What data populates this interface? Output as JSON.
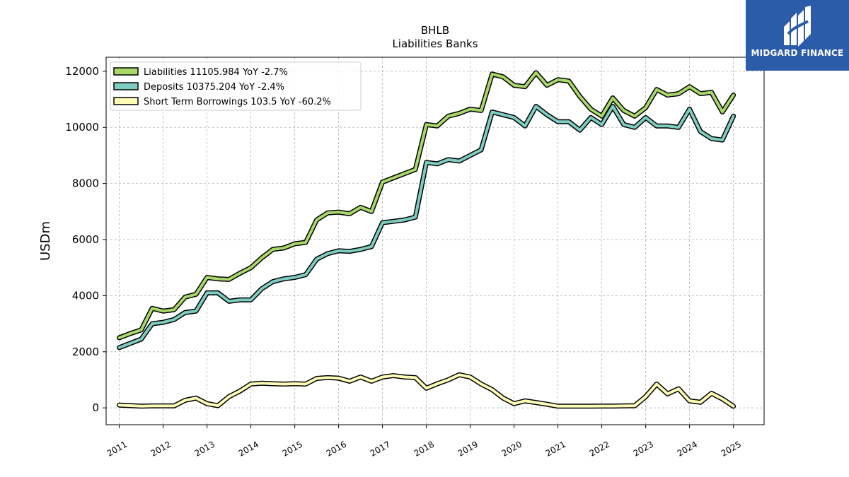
{
  "brand": {
    "name": "MIDGARD FINANCE",
    "bg": "#2a5caa"
  },
  "chart_data": {
    "type": "line",
    "title": "BHLB",
    "subtitle": "Liabilities Banks",
    "xlabel": "",
    "ylabel": "USDm",
    "xlim": [
      2010.7,
      2025.7
    ],
    "ylim": [
      -600,
      12500
    ],
    "yticks": [
      0,
      2000,
      4000,
      6000,
      8000,
      10000,
      12000
    ],
    "xticks": [
      "2011",
      "2012",
      "2013",
      "2014",
      "2015",
      "2016",
      "2017",
      "2018",
      "2019",
      "2020",
      "2021",
      "2022",
      "2023",
      "2024",
      "2025"
    ],
    "grid": true,
    "legend_position": "top-left",
    "x": [
      2011.0,
      2011.25,
      2011.5,
      2011.75,
      2012.0,
      2012.25,
      2012.5,
      2012.75,
      2013.0,
      2013.25,
      2013.5,
      2013.75,
      2014.0,
      2014.25,
      2014.5,
      2014.75,
      2015.0,
      2015.25,
      2015.5,
      2015.75,
      2016.0,
      2016.25,
      2016.5,
      2016.75,
      2017.0,
      2017.25,
      2017.5,
      2017.75,
      2018.0,
      2018.25,
      2018.5,
      2018.75,
      2019.0,
      2019.25,
      2019.5,
      2019.75,
      2020.0,
      2020.25,
      2020.5,
      2020.75,
      2021.0,
      2021.25,
      2021.5,
      2021.75,
      2022.0,
      2022.25,
      2022.5,
      2022.75,
      2023.0,
      2023.25,
      2023.5,
      2023.75,
      2024.0,
      2024.25,
      2024.5,
      2024.75,
      2025.0
    ],
    "series": [
      {
        "name": "Liabilities",
        "legend_label": "Liabilities  11105.984 YoY -2.7%",
        "color": "#a8d86a",
        "values": [
          2500,
          2650,
          2780,
          3550,
          3450,
          3500,
          3950,
          4050,
          4650,
          4600,
          4580,
          4800,
          5000,
          5350,
          5650,
          5700,
          5850,
          5900,
          6700,
          6950,
          6980,
          6920,
          7150,
          7000,
          8050,
          8200,
          8350,
          8500,
          10100,
          10050,
          10400,
          10500,
          10650,
          10600,
          11900,
          11800,
          11500,
          11450,
          11950,
          11500,
          11700,
          11650,
          11100,
          10650,
          10400,
          11050,
          10600,
          10400,
          10700,
          11350,
          11150,
          11200,
          11450,
          11200,
          11250,
          10550,
          11150
        ]
      },
      {
        "name": "Deposits",
        "legend_label": "Deposits  10375.204 YoY -2.4%",
        "color": "#7dcdc0",
        "values": [
          2150,
          2300,
          2450,
          3000,
          3050,
          3150,
          3400,
          3450,
          4100,
          4100,
          3800,
          3850,
          3850,
          4250,
          4500,
          4600,
          4650,
          4750,
          5300,
          5500,
          5600,
          5580,
          5650,
          5750,
          6600,
          6650,
          6700,
          6800,
          8750,
          8700,
          8850,
          8800,
          9000,
          9200,
          10550,
          10450,
          10350,
          10050,
          10750,
          10450,
          10200,
          10200,
          9900,
          10350,
          10100,
          10750,
          10100,
          10000,
          10350,
          10050,
          10050,
          10000,
          10650,
          9850,
          9600,
          9550,
          10400
        ]
      },
      {
        "name": "Short Term Borrowings",
        "legend_label": "Short Term Borrowings  103.5 YoY -60.2%",
        "color": "#fdfdb8",
        "values": [
          100,
          80,
          60,
          70,
          70,
          70,
          270,
          350,
          150,
          80,
          400,
          600,
          850,
          880,
          860,
          850,
          860,
          850,
          1050,
          1080,
          1060,
          950,
          1100,
          950,
          1100,
          1150,
          1100,
          1080,
          700,
          860,
          1000,
          1180,
          1100,
          850,
          650,
          350,
          150,
          250,
          190,
          130,
          60,
          60,
          60,
          60,
          65,
          65,
          70,
          75,
          400,
          850,
          500,
          680,
          250,
          200,
          520,
          320,
          60
        ]
      }
    ]
  }
}
